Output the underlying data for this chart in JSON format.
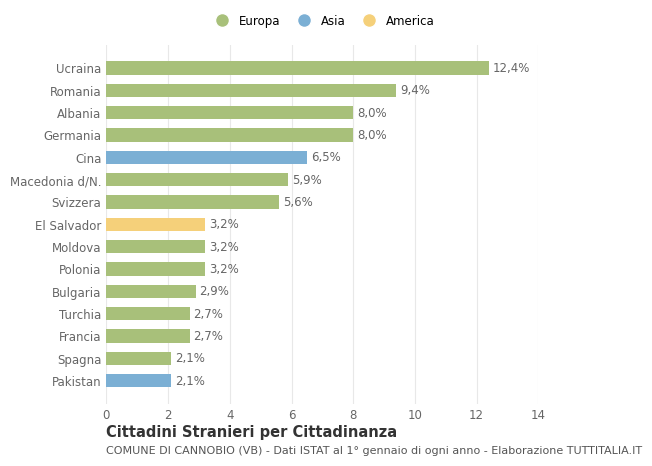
{
  "categories": [
    "Pakistan",
    "Spagna",
    "Francia",
    "Turchia",
    "Bulgaria",
    "Polonia",
    "Moldova",
    "El Salvador",
    "Svizzera",
    "Macedonia d/N.",
    "Cina",
    "Germania",
    "Albania",
    "Romania",
    "Ucraina"
  ],
  "values": [
    2.1,
    2.1,
    2.7,
    2.7,
    2.9,
    3.2,
    3.2,
    3.2,
    5.6,
    5.9,
    6.5,
    8.0,
    8.0,
    9.4,
    12.4
  ],
  "labels": [
    "2,1%",
    "2,1%",
    "2,7%",
    "2,7%",
    "2,9%",
    "3,2%",
    "3,2%",
    "3,2%",
    "5,6%",
    "5,9%",
    "6,5%",
    "8,0%",
    "8,0%",
    "9,4%",
    "12,4%"
  ],
  "colors": [
    "#7bafd4",
    "#a8c07a",
    "#a8c07a",
    "#a8c07a",
    "#a8c07a",
    "#a8c07a",
    "#a8c07a",
    "#f5d07a",
    "#a8c07a",
    "#a8c07a",
    "#7bafd4",
    "#a8c07a",
    "#a8c07a",
    "#a8c07a",
    "#a8c07a"
  ],
  "legend_labels": [
    "Europa",
    "Asia",
    "America"
  ],
  "legend_colors": [
    "#a8c07a",
    "#7bafd4",
    "#f5d07a"
  ],
  "title": "Cittadini Stranieri per Cittadinanza",
  "subtitle": "COMUNE DI CANNOBIO (VB) - Dati ISTAT al 1° gennaio di ogni anno - Elaborazione TUTTITALIA.IT",
  "xlim": [
    0,
    14
  ],
  "xticks": [
    0,
    2,
    4,
    6,
    8,
    10,
    12,
    14
  ],
  "background_color": "#ffffff",
  "bar_edge_color": "none",
  "grid_color": "#e8e8e8",
  "text_color": "#666666",
  "label_fontsize": 8.5,
  "tick_fontsize": 8.5,
  "title_fontsize": 10.5,
  "subtitle_fontsize": 8.0
}
